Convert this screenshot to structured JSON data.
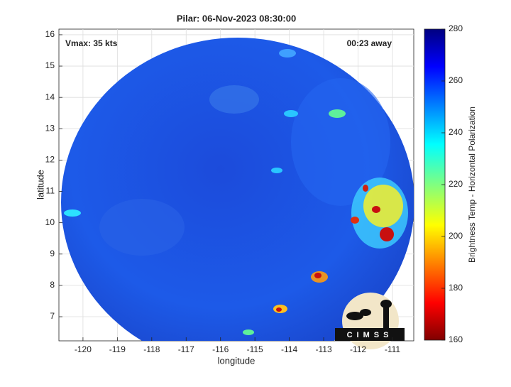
{
  "chart_data": {
    "type": "image",
    "title": "Pilar: 06-Nov-2023 08:30:00",
    "annotations": [
      "Vmax: 35 kts",
      "00:23 away"
    ],
    "x_label": "longitude",
    "y_label": "latitude",
    "xlim": [
      -120.7,
      -110.38
    ],
    "ylim": [
      6.23,
      16.18
    ],
    "xticks": [
      -120,
      -119,
      -118,
      -117,
      -116,
      -115,
      -114,
      -113,
      -112,
      -111
    ],
    "yticks": [
      7,
      8,
      9,
      10,
      11,
      12,
      13,
      14,
      15,
      16
    ],
    "grid": true,
    "colorbar": {
      "label": "Brightness Temp - Horizontal Polarization",
      "lim": [
        160,
        280
      ],
      "ticks": [
        160,
        180,
        200,
        220,
        240,
        260,
        280
      ]
    },
    "logo": "CIMSS"
  }
}
